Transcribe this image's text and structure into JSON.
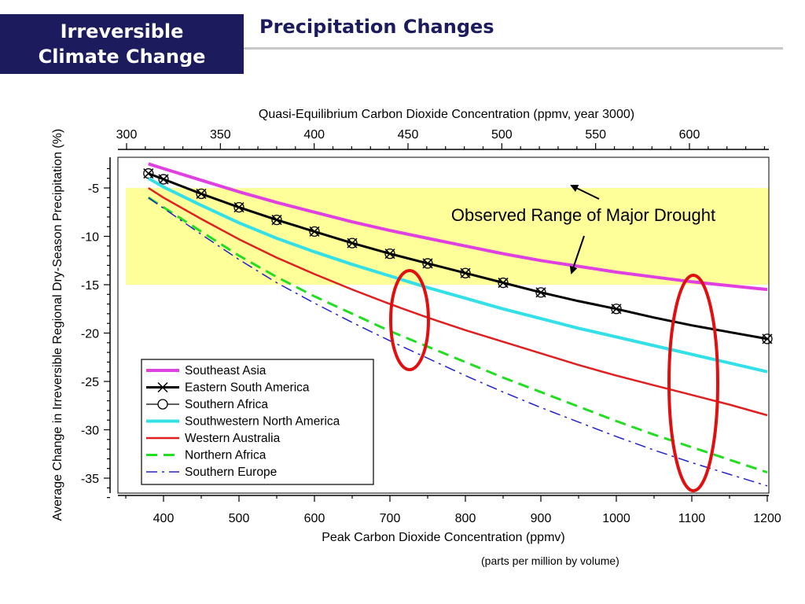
{
  "slide": {
    "section_title_line1": "Irreversible",
    "section_title_line2": "Climate Change",
    "heading": "Precipitation Changes",
    "footnote": "(parts per million by volume)"
  },
  "chart_data": {
    "type": "line",
    "xlabel": "Peak Carbon Dioxide Concentration (ppmv)",
    "x2label": "Quasi-Equilibrium Carbon Dioxide Concentration (ppmv, year 3000)",
    "ylabel": "Average Change in Irreversible Regional Dry-Season Precipitation (%)",
    "xlim": [
      350,
      1200
    ],
    "x2lim": [
      300,
      640
    ],
    "ylim": [
      -37,
      -2
    ],
    "xticks": [
      400,
      500,
      600,
      700,
      800,
      900,
      1000,
      1100,
      1200
    ],
    "x2ticks": [
      300,
      350,
      400,
      450,
      500,
      550,
      600
    ],
    "yticks": [
      -5,
      -10,
      -15,
      -20,
      -25,
      -30,
      -35
    ],
    "grid": false,
    "legend_position": "bottom-left",
    "shaded_band": {
      "y_from": -15,
      "y_to": -5,
      "color": "#ffff99",
      "label": "Observed Range of Major Drought"
    },
    "x": [
      380,
      400,
      450,
      500,
      550,
      600,
      650,
      700,
      750,
      800,
      850,
      900,
      950,
      1000,
      1050,
      1100,
      1150,
      1200
    ],
    "series": [
      {
        "name": "Southeast Asia",
        "color": "#e040e0",
        "style": "solid",
        "width": 4,
        "marker": "none",
        "values": [
          -2.5,
          -3.0,
          -4.2,
          -5.4,
          -6.5,
          -7.5,
          -8.5,
          -9.4,
          -10.2,
          -11.0,
          -11.8,
          -12.5,
          -13.1,
          -13.7,
          -14.2,
          -14.7,
          -15.1,
          -15.5
        ]
      },
      {
        "name": "Eastern South America",
        "color": "#000000",
        "style": "solid",
        "width": 3,
        "marker": "x",
        "marker_x": [
          380,
          400,
          450,
          500,
          550,
          600,
          650,
          700,
          750,
          800,
          850,
          900,
          1000,
          1200
        ],
        "values": [
          -3.5,
          -4.1,
          -5.6,
          -7.0,
          -8.3,
          -9.5,
          -10.7,
          -11.8,
          -12.8,
          -13.8,
          -14.8,
          -15.8,
          -16.7,
          -17.5,
          -18.4,
          -19.2,
          -19.9,
          -20.6
        ]
      },
      {
        "name": "Southern Africa",
        "color": "#000000",
        "style": "solid",
        "width": 1.2,
        "marker": "circle",
        "marker_x": [
          380,
          400,
          450,
          500,
          550,
          600,
          650,
          700,
          750,
          800,
          850,
          900,
          1000,
          1200
        ],
        "values": [
          -3.5,
          -4.1,
          -5.6,
          -7.0,
          -8.3,
          -9.5,
          -10.7,
          -11.8,
          -12.8,
          -13.8,
          -14.8,
          -15.8,
          -16.7,
          -17.5,
          -18.4,
          -19.2,
          -19.9,
          -20.6
        ]
      },
      {
        "name": "Southwestern North America",
        "color": "#33e0e8",
        "style": "solid",
        "width": 4,
        "marker": "none",
        "values": [
          -4.0,
          -4.9,
          -6.8,
          -8.6,
          -10.2,
          -11.6,
          -12.9,
          -14.1,
          -15.3,
          -16.4,
          -17.5,
          -18.5,
          -19.5,
          -20.4,
          -21.3,
          -22.2,
          -23.1,
          -24.0
        ]
      },
      {
        "name": "Western Australia",
        "color": "#e02020",
        "style": "solid",
        "width": 2.5,
        "marker": "none",
        "values": [
          -5.0,
          -6.0,
          -8.2,
          -10.3,
          -12.2,
          -13.9,
          -15.5,
          -17.0,
          -18.4,
          -19.7,
          -20.9,
          -22.1,
          -23.3,
          -24.4,
          -25.4,
          -26.4,
          -27.4,
          -28.5
        ]
      },
      {
        "name": "Northern Africa",
        "color": "#22dd22",
        "style": "dashed",
        "width": 3,
        "marker": "none",
        "values": [
          -6.0,
          -7.0,
          -9.5,
          -12.0,
          -14.2,
          -16.2,
          -18.0,
          -19.8,
          -21.4,
          -23.0,
          -24.6,
          -26.1,
          -27.6,
          -29.1,
          -30.5,
          -31.8,
          -33.1,
          -34.4
        ]
      },
      {
        "name": "Southern Europe",
        "color": "#2222cc",
        "style": "dashdot",
        "width": 1.5,
        "marker": "none",
        "values": [
          -6.0,
          -7.1,
          -9.8,
          -12.4,
          -14.8,
          -16.9,
          -18.9,
          -20.8,
          -22.6,
          -24.4,
          -26.1,
          -27.7,
          -29.2,
          -30.7,
          -32.1,
          -33.4,
          -34.6,
          -35.8
        ]
      }
    ]
  }
}
